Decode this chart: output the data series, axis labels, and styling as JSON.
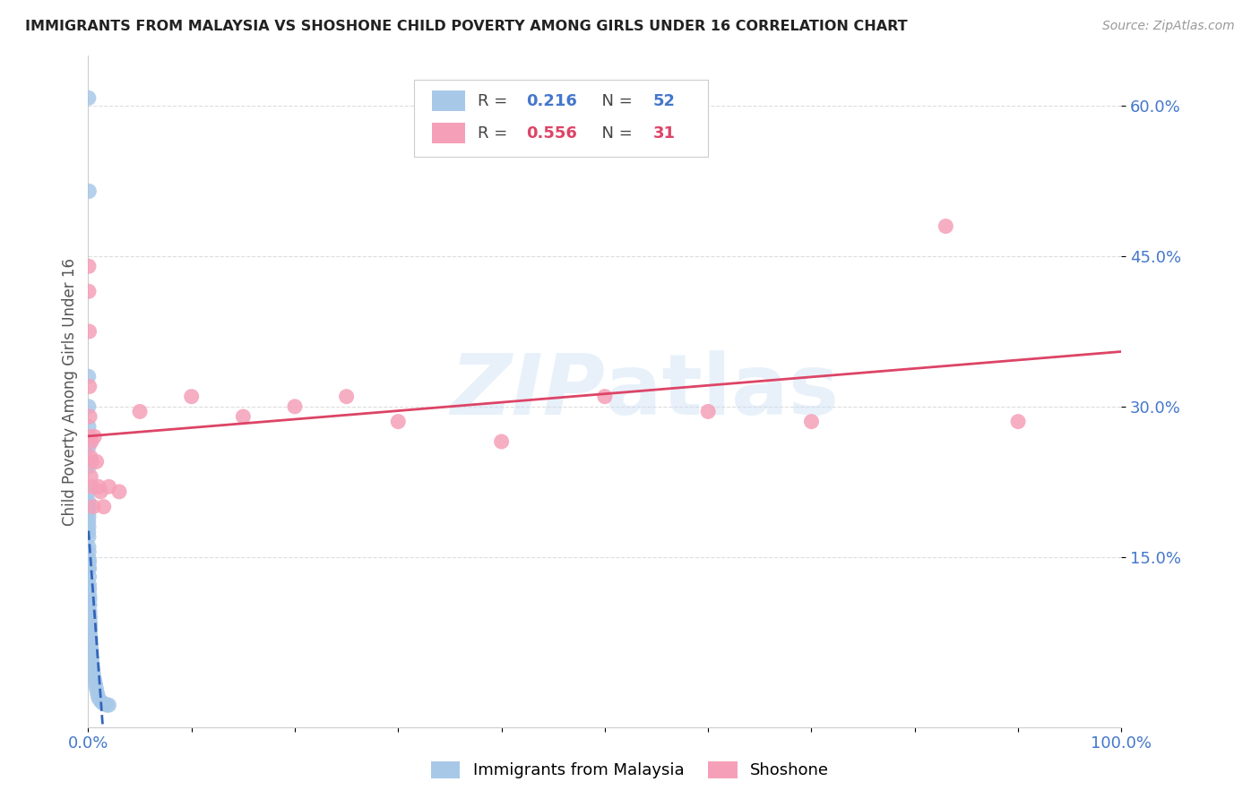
{
  "title": "IMMIGRANTS FROM MALAYSIA VS SHOSHONE CHILD POVERTY AMONG GIRLS UNDER 16 CORRELATION CHART",
  "source": "Source: ZipAtlas.com",
  "ylabel": "Child Poverty Among Girls Under 16",
  "xlim": [
    0,
    1.0
  ],
  "ylim": [
    -0.02,
    0.65
  ],
  "yticks": [
    0.15,
    0.3,
    0.45,
    0.6
  ],
  "ytick_labels": [
    "15.0%",
    "30.0%",
    "45.0%",
    "60.0%"
  ],
  "xticks": [
    0,
    0.1,
    0.2,
    0.3,
    0.4,
    0.5,
    0.6,
    0.7,
    0.8,
    0.9,
    1.0
  ],
  "xtick_labels": [
    "0.0%",
    "",
    "",
    "",
    "",
    "",
    "",
    "",
    "",
    "",
    "100.0%"
  ],
  "blue_R": 0.216,
  "blue_N": 52,
  "pink_R": 0.556,
  "pink_N": 31,
  "blue_color": "#a8c8e8",
  "pink_color": "#f5a0b8",
  "blue_trend_color": "#3366bb",
  "pink_trend_color": "#dd4466",
  "blue_label": "Immigrants from Malaysia",
  "pink_label": "Shoshone",
  "watermark": "ZIPatlas",
  "tick_color": "#4477cc",
  "grid_color": "#dddddd",
  "ylabel_color": "#555555",
  "title_color": "#222222",
  "source_color": "#999999",
  "blue_x": [
    0.0004,
    0.0008,
    0.0003,
    0.0003,
    0.0003,
    0.0003,
    0.0003,
    0.0005,
    0.0005,
    0.0005,
    0.0005,
    0.0005,
    0.0007,
    0.0007,
    0.0007,
    0.001,
    0.001,
    0.001,
    0.001,
    0.0012,
    0.0012,
    0.0015,
    0.0015,
    0.0015,
    0.0018,
    0.0018,
    0.002,
    0.002,
    0.002,
    0.0025,
    0.0025,
    0.003,
    0.003,
    0.0035,
    0.004,
    0.0045,
    0.005,
    0.006,
    0.007,
    0.008,
    0.009,
    0.01,
    0.012,
    0.014,
    0.016,
    0.018,
    0.02,
    0.0003,
    0.0004,
    0.0005,
    0.0006,
    0.0008
  ],
  "blue_y": [
    0.608,
    0.515,
    0.215,
    0.205,
    0.195,
    0.185,
    0.175,
    0.2,
    0.19,
    0.18,
    0.17,
    0.16,
    0.155,
    0.148,
    0.14,
    0.145,
    0.138,
    0.13,
    0.122,
    0.118,
    0.112,
    0.108,
    0.102,
    0.095,
    0.09,
    0.085,
    0.082,
    0.078,
    0.072,
    0.068,
    0.063,
    0.058,
    0.053,
    0.048,
    0.043,
    0.038,
    0.033,
    0.028,
    0.023,
    0.018,
    0.013,
    0.009,
    0.006,
    0.004,
    0.003,
    0.002,
    0.002,
    0.33,
    0.3,
    0.28,
    0.26,
    0.24
  ],
  "pink_x": [
    0.0005,
    0.0005,
    0.001,
    0.0012,
    0.0015,
    0.0018,
    0.002,
    0.0025,
    0.003,
    0.0035,
    0.004,
    0.005,
    0.006,
    0.008,
    0.01,
    0.012,
    0.015,
    0.02,
    0.03,
    0.05,
    0.1,
    0.15,
    0.2,
    0.25,
    0.3,
    0.4,
    0.5,
    0.6,
    0.7,
    0.83,
    0.9
  ],
  "pink_y": [
    0.44,
    0.415,
    0.375,
    0.32,
    0.29,
    0.27,
    0.25,
    0.23,
    0.265,
    0.245,
    0.22,
    0.2,
    0.27,
    0.245,
    0.22,
    0.215,
    0.2,
    0.22,
    0.215,
    0.295,
    0.31,
    0.29,
    0.3,
    0.31,
    0.285,
    0.265,
    0.31,
    0.295,
    0.285,
    0.48,
    0.285
  ]
}
